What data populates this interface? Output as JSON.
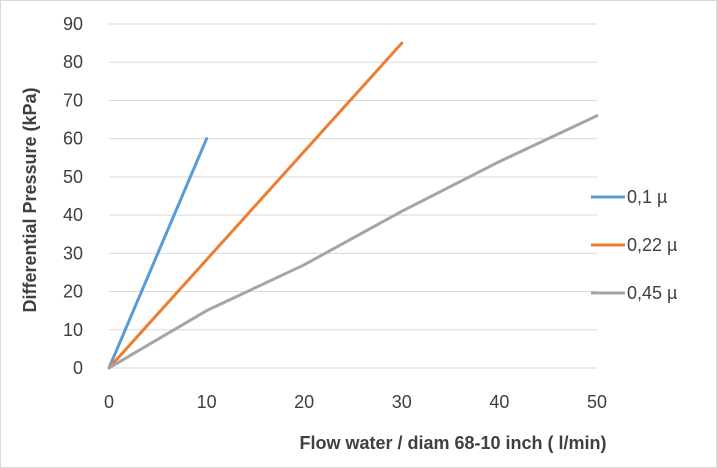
{
  "chart_data": {
    "type": "line",
    "title": "",
    "xlabel": "Flow water  / diam 68-10 inch ( l/min)",
    "ylabel": "Differential Pressure (kPa)",
    "xlim": [
      0,
      50
    ],
    "ylim": [
      0,
      90
    ],
    "xticks": [
      "0",
      "10",
      "20",
      "30",
      "40",
      "50"
    ],
    "yticks": [
      "0",
      "10",
      "20",
      "30",
      "40",
      "50",
      "60",
      "70",
      "80",
      "90"
    ],
    "grid": "horizontal",
    "legend_position": "right",
    "series": [
      {
        "name": "0,1 µ",
        "color": "#5b9bd5",
        "x": [
          0,
          10
        ],
        "y": [
          0,
          60
        ]
      },
      {
        "name": "0,22 µ",
        "color": "#ed7d31",
        "x": [
          0,
          30
        ],
        "y": [
          0,
          85
        ]
      },
      {
        "name": "0,45 µ",
        "color": "#a5a5a5",
        "x": [
          0,
          10,
          20,
          30,
          40,
          50
        ],
        "y": [
          0,
          15,
          27,
          41,
          54,
          66
        ]
      }
    ]
  }
}
